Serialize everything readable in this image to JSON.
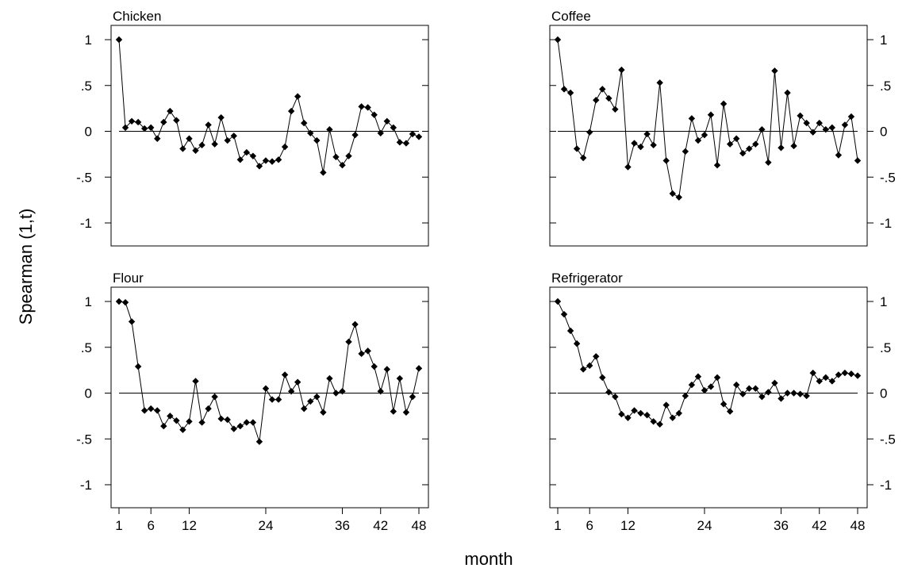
{
  "chart_data": {
    "type": "line",
    "layout": "2x2 small multiples",
    "ylabel": "Spearman (1,t)",
    "xlabel": "month",
    "xlim": [
      1,
      48
    ],
    "ylim": [
      -1,
      1
    ],
    "x_ticks": [
      1,
      6,
      12,
      24,
      36,
      42,
      48
    ],
    "y_ticks": [
      1,
      0.5,
      0,
      -0.5,
      -1
    ],
    "y_tick_labels": [
      "1",
      ".5",
      "0",
      "-.5",
      "-1"
    ],
    "reference_line": 0,
    "marker": "diamond",
    "line_color": "#000000",
    "marker_color": "#000000",
    "x_axis_panels": "bottom row",
    "y_axis_left_panels": "left column",
    "y_axis_right_panels": "right column",
    "panels": [
      {
        "title": "Chicken",
        "x": [
          1,
          2,
          3,
          4,
          5,
          6,
          7,
          8,
          9,
          10,
          11,
          12,
          13,
          14,
          15,
          16,
          17,
          18,
          19,
          20,
          21,
          22,
          23,
          24,
          25,
          26,
          27,
          28,
          29,
          30,
          31,
          32,
          33,
          34,
          35,
          36,
          37,
          38,
          39,
          40,
          41,
          42,
          43,
          44,
          45,
          46,
          47,
          48
        ],
        "values": [
          1.0,
          0.04,
          0.11,
          0.1,
          0.03,
          0.04,
          -0.08,
          0.1,
          0.22,
          0.12,
          -0.19,
          -0.08,
          -0.21,
          -0.15,
          0.07,
          -0.14,
          0.15,
          -0.1,
          -0.05,
          -0.31,
          -0.23,
          -0.27,
          -0.38,
          -0.32,
          -0.33,
          -0.31,
          -0.17,
          0.22,
          0.38,
          0.09,
          -0.02,
          -0.1,
          -0.45,
          0.02,
          -0.28,
          -0.37,
          -0.27,
          -0.04,
          0.27,
          0.26,
          0.18,
          -0.02,
          0.11,
          0.04,
          -0.12,
          -0.13,
          -0.03,
          -0.06
        ]
      },
      {
        "title": "Coffee",
        "x": [
          1,
          2,
          3,
          4,
          5,
          6,
          7,
          8,
          9,
          10,
          11,
          12,
          13,
          14,
          15,
          16,
          17,
          18,
          19,
          20,
          21,
          22,
          23,
          24,
          25,
          26,
          27,
          28,
          29,
          30,
          31,
          32,
          33,
          34,
          35,
          36,
          37,
          38,
          39,
          40,
          41,
          42,
          43,
          44,
          45,
          46,
          47,
          48
        ],
        "values": [
          1.0,
          0.46,
          0.42,
          -0.19,
          -0.29,
          -0.01,
          0.34,
          0.46,
          0.36,
          0.24,
          0.67,
          -0.39,
          -0.13,
          -0.17,
          -0.03,
          -0.15,
          0.53,
          -0.32,
          -0.68,
          -0.72,
          -0.22,
          0.14,
          -0.1,
          -0.04,
          0.18,
          -0.37,
          0.3,
          -0.14,
          -0.08,
          -0.24,
          -0.19,
          -0.14,
          0.02,
          -0.34,
          0.66,
          -0.18,
          0.42,
          -0.16,
          0.17,
          0.09,
          -0.01,
          0.09,
          0.02,
          0.04,
          -0.26,
          0.07,
          0.16,
          -0.32
        ]
      },
      {
        "title": "Flour",
        "x": [
          1,
          2,
          3,
          4,
          5,
          6,
          7,
          8,
          9,
          10,
          11,
          12,
          13,
          14,
          15,
          16,
          17,
          18,
          19,
          20,
          21,
          22,
          23,
          24,
          25,
          26,
          27,
          28,
          29,
          30,
          31,
          32,
          33,
          34,
          35,
          36,
          37,
          38,
          39,
          40,
          41,
          42,
          43,
          44,
          45,
          46,
          47,
          48
        ],
        "values": [
          1.0,
          0.99,
          0.78,
          0.29,
          -0.19,
          -0.17,
          -0.19,
          -0.36,
          -0.25,
          -0.3,
          -0.4,
          -0.31,
          0.13,
          -0.32,
          -0.17,
          -0.04,
          -0.28,
          -0.29,
          -0.39,
          -0.36,
          -0.32,
          -0.32,
          -0.53,
          0.05,
          -0.07,
          -0.07,
          0.2,
          0.02,
          0.12,
          -0.17,
          -0.09,
          -0.04,
          -0.21,
          0.16,
          0.0,
          0.02,
          0.56,
          0.75,
          0.43,
          0.46,
          0.29,
          0.02,
          0.26,
          -0.2,
          0.16,
          -0.21,
          -0.04,
          0.27
        ]
      },
      {
        "title": "Refrigerator",
        "x": [
          1,
          2,
          3,
          4,
          5,
          6,
          7,
          8,
          9,
          10,
          11,
          12,
          13,
          14,
          15,
          16,
          17,
          18,
          19,
          20,
          21,
          22,
          23,
          24,
          25,
          26,
          27,
          28,
          29,
          30,
          31,
          32,
          33,
          34,
          35,
          36,
          37,
          38,
          39,
          40,
          41,
          42,
          43,
          44,
          45,
          46,
          47,
          48
        ],
        "values": [
          1.0,
          0.86,
          0.68,
          0.54,
          0.26,
          0.3,
          0.4,
          0.17,
          0.01,
          -0.04,
          -0.23,
          -0.27,
          -0.19,
          -0.22,
          -0.24,
          -0.31,
          -0.34,
          -0.13,
          -0.27,
          -0.22,
          -0.03,
          0.09,
          0.18,
          0.03,
          0.07,
          0.17,
          -0.12,
          -0.2,
          0.09,
          -0.01,
          0.05,
          0.05,
          -0.04,
          0.01,
          0.11,
          -0.06,
          0.0,
          0.0,
          -0.01,
          -0.03,
          0.22,
          0.13,
          0.17,
          0.13,
          0.2,
          0.22,
          0.21,
          0.19
        ]
      }
    ]
  }
}
